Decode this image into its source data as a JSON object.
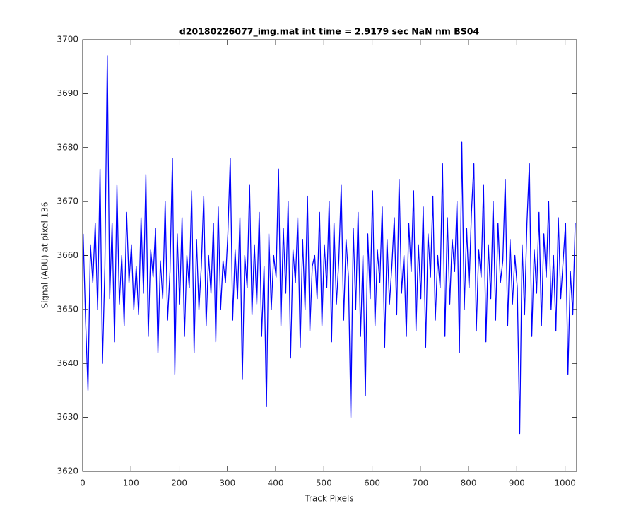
{
  "chart_data": {
    "type": "line",
    "title": "d20180226077_img.mat int time = 2.9179 sec  NaN nm BS04",
    "x_label": "Track Pixels",
    "y_label": "Signal (ADU) at pixel 136",
    "xlim": [
      0,
      1024
    ],
    "xticks": [
      0,
      100,
      200,
      300,
      400,
      500,
      600,
      700,
      800,
      900,
      1000
    ],
    "ylim": [
      3620,
      3700
    ],
    "yticks": [
      3620,
      3630,
      3640,
      3650,
      3660,
      3670,
      3680,
      3690,
      3700
    ],
    "grid": false,
    "x": [
      1,
      6,
      11,
      16,
      21,
      26,
      31,
      36,
      41,
      46,
      51,
      56,
      61,
      66,
      71,
      76,
      81,
      86,
      91,
      96,
      101,
      106,
      111,
      116,
      121,
      126,
      131,
      136,
      141,
      146,
      151,
      156,
      161,
      166,
      171,
      176,
      181,
      186,
      191,
      196,
      201,
      206,
      211,
      216,
      221,
      226,
      231,
      236,
      241,
      246,
      251,
      256,
      261,
      266,
      271,
      276,
      281,
      286,
      291,
      296,
      301,
      306,
      311,
      316,
      321,
      326,
      331,
      336,
      341,
      346,
      351,
      356,
      361,
      366,
      371,
      376,
      381,
      386,
      391,
      396,
      401,
      406,
      411,
      416,
      421,
      426,
      431,
      436,
      441,
      446,
      451,
      456,
      461,
      466,
      471,
      476,
      481,
      486,
      491,
      496,
      501,
      506,
      511,
      516,
      521,
      526,
      531,
      536,
      541,
      546,
      551,
      556,
      561,
      566,
      571,
      576,
      581,
      586,
      591,
      596,
      601,
      606,
      611,
      616,
      621,
      626,
      631,
      636,
      641,
      646,
      651,
      656,
      661,
      666,
      671,
      676,
      681,
      686,
      691,
      696,
      701,
      706,
      711,
      716,
      721,
      726,
      731,
      736,
      741,
      746,
      751,
      756,
      761,
      766,
      771,
      776,
      781,
      786,
      791,
      796,
      801,
      806,
      811,
      816,
      821,
      826,
      831,
      836,
      841,
      846,
      851,
      856,
      861,
      866,
      871,
      876,
      881,
      886,
      891,
      896,
      901,
      906,
      911,
      916,
      921,
      926,
      931,
      936,
      941,
      946,
      951,
      956,
      961,
      966,
      971,
      976,
      981,
      986,
      991,
      996,
      1001,
      1006,
      1011,
      1016,
      1021
    ],
    "series": [
      {
        "color": "#0000ff",
        "values": [
          3664,
          3648,
          3635,
          3662,
          3655,
          3666,
          3650,
          3676,
          3640,
          3658,
          3697,
          3652,
          3666,
          3644,
          3673,
          3651,
          3660,
          3647,
          3668,
          3655,
          3662,
          3650,
          3658,
          3649,
          3667,
          3653,
          3675,
          3645,
          3661,
          3656,
          3665,
          3642,
          3659,
          3652,
          3670,
          3648,
          3657,
          3678,
          3638,
          3664,
          3651,
          3667,
          3645,
          3660,
          3654,
          3672,
          3642,
          3663,
          3650,
          3658,
          3671,
          3647,
          3660,
          3653,
          3666,
          3644,
          3669,
          3650,
          3659,
          3655,
          3664,
          3678,
          3648,
          3661,
          3652,
          3667,
          3637,
          3660,
          3654,
          3673,
          3649,
          3662,
          3651,
          3668,
          3645,
          3658,
          3632,
          3664,
          3650,
          3660,
          3656,
          3676,
          3647,
          3665,
          3653,
          3670,
          3641,
          3661,
          3655,
          3667,
          3643,
          3663,
          3650,
          3671,
          3646,
          3658,
          3660,
          3652,
          3668,
          3647,
          3662,
          3654,
          3670,
          3644,
          3666,
          3651,
          3659,
          3673,
          3648,
          3663,
          3656,
          3630,
          3665,
          3650,
          3668,
          3645,
          3660,
          3634,
          3664,
          3652,
          3672,
          3647,
          3661,
          3655,
          3669,
          3643,
          3663,
          3651,
          3658,
          3667,
          3649,
          3674,
          3653,
          3660,
          3645,
          3666,
          3657,
          3672,
          3646,
          3662,
          3652,
          3669,
          3643,
          3664,
          3656,
          3671,
          3648,
          3660,
          3654,
          3677,
          3645,
          3667,
          3651,
          3663,
          3657,
          3670,
          3642,
          3681,
          3650,
          3665,
          3654,
          3668,
          3677,
          3646,
          3661,
          3656,
          3673,
          3644,
          3662,
          3652,
          3670,
          3648,
          3666,
          3655,
          3659,
          3674,
          3647,
          3663,
          3651,
          3660,
          3654,
          3627,
          3662,
          3649,
          3666,
          3677,
          3645,
          3661,
          3653,
          3668,
          3647,
          3664,
          3656,
          3670,
          3650,
          3660,
          3646,
          3667,
          3652,
          3659,
          3666,
          3638,
          3657,
          3649,
          3666
        ]
      }
    ]
  }
}
